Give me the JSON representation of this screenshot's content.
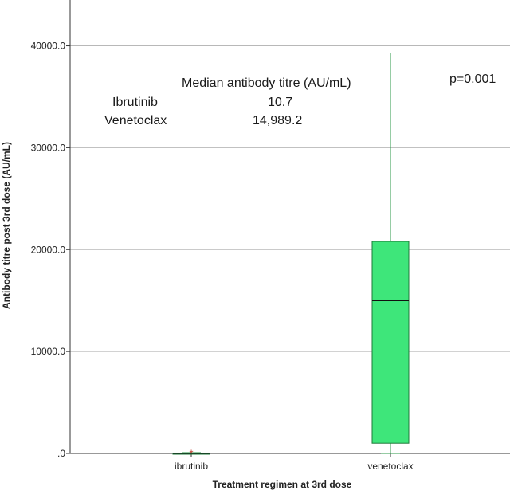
{
  "chart_data": {
    "type": "box",
    "xlabel": "Treatment regimen at 3rd dose",
    "ylabel": "Antibody titre post 3rd dose (AU/mL)",
    "ylim": [
      0,
      44500
    ],
    "yticks": [
      0,
      10000,
      20000,
      30000,
      40000
    ],
    "ytick_labels": [
      ".0",
      "10000.0",
      "20000.0",
      "30000.0",
      "40000.0"
    ],
    "grid": "horizontal",
    "categories": [
      "ibrutinib",
      "venetoclax"
    ],
    "boxes": [
      {
        "category": "ibrutinib",
        "min": 0,
        "q1": 0,
        "median": 10.7,
        "q3": 40,
        "max": 80,
        "outliers": [
          120
        ],
        "fill": "#3ee67a"
      },
      {
        "category": "venetoclax",
        "min": 0,
        "q1": 1000,
        "median": 14989.2,
        "q3": 20800,
        "max": 39300,
        "outliers": [],
        "fill": "#3ee67a"
      }
    ],
    "annotations": {
      "table_header": "Median antibody titre (AU/mL)",
      "rows": [
        {
          "label": "Ibrutinib",
          "value": "10.7"
        },
        {
          "label": "Venetoclax",
          "value": "14,989.2"
        }
      ],
      "p_value": "p=0.001"
    },
    "colors": {
      "box_fill": "#3ee67a",
      "box_edge": "#1f7a3a",
      "whisker": "#2e9a4a",
      "grid": "#b8b8b8",
      "outlier": "#c0392b"
    }
  }
}
